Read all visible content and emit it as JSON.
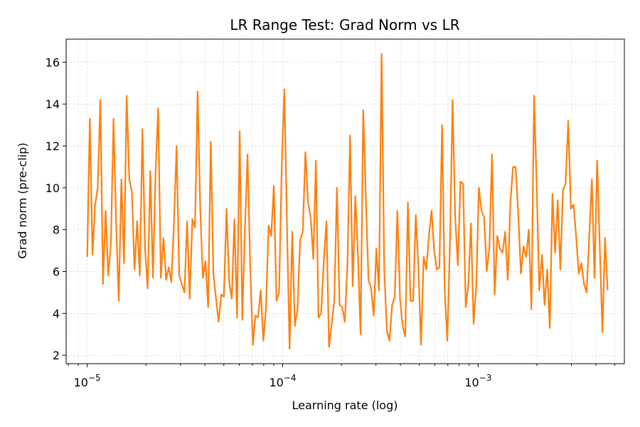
{
  "chart_data": {
    "type": "line",
    "title": "LR Range Test: Grad Norm vs LR",
    "xlabel": "Learning rate (log)",
    "ylabel": "Grad norm (pre-clip)",
    "x_scale": "log",
    "xlim": [
      7.8e-06,
      0.0056
    ],
    "ylim": [
      1.6,
      17.1
    ],
    "grid": true,
    "line_color": "#ff7f0e",
    "y_ticks": [
      2,
      4,
      6,
      8,
      10,
      12,
      14,
      16
    ],
    "x_major_ticks": [
      {
        "value": 1e-05,
        "mantissa": "10",
        "exponent": "−5"
      },
      {
        "value": 0.0001,
        "mantissa": "10",
        "exponent": "−4"
      },
      {
        "value": 0.001,
        "mantissa": "10",
        "exponent": "−3"
      }
    ],
    "series": [
      {
        "x_range": [
          1e-05,
          0.0046
        ],
        "y": [
          6.7,
          13.3,
          6.8,
          9.2,
          10.0,
          14.2,
          5.4,
          8.9,
          5.8,
          7.3,
          13.3,
          8.3,
          4.6,
          10.4,
          6.4,
          14.4,
          10.4,
          9.8,
          6.1,
          8.4,
          5.8,
          12.8,
          7.1,
          5.2,
          10.8,
          5.7,
          10.7,
          13.8,
          5.7,
          7.6,
          5.6,
          6.2,
          5.5,
          8.3,
          12.0,
          5.8,
          5.4,
          5.0,
          8.4,
          4.7,
          8.5,
          8.1,
          14.6,
          9.0,
          5.7,
          6.5,
          4.3,
          12.2,
          5.9,
          4.7,
          3.6,
          4.9,
          4.8,
          9.0,
          5.5,
          4.7,
          8.5,
          3.8,
          12.7,
          3.7,
          8.0,
          11.6,
          6.3,
          2.5,
          3.9,
          3.8,
          5.1,
          2.7,
          4.2,
          8.2,
          7.7,
          10.1,
          4.6,
          5.0,
          11.0,
          14.7,
          8.2,
          2.3,
          7.9,
          3.4,
          4.2,
          7.5,
          7.9,
          11.7,
          9.3,
          8.6,
          6.6,
          11.3,
          3.8,
          4.0,
          6.5,
          8.4,
          2.4,
          3.5,
          4.6,
          10.0,
          4.4,
          4.3,
          3.6,
          6.3,
          12.5,
          5.3,
          9.6,
          6.8,
          3.0,
          13.7,
          9.6,
          5.6,
          5.2,
          3.9,
          7.1,
          5.1,
          16.4,
          6.1,
          3.2,
          2.7,
          4.4,
          4.8,
          8.9,
          4.7,
          3.4,
          2.9,
          9.3,
          4.6,
          4.6,
          8.7,
          6.2,
          2.5,
          6.7,
          6.1,
          7.7,
          8.9,
          7.0,
          6.1,
          6.2,
          13.0,
          5.1,
          2.7,
          7.3,
          14.2,
          8.6,
          6.3,
          10.3,
          10.2,
          4.3,
          5.4,
          8.3,
          3.5,
          5.3,
          10.0,
          8.9,
          8.6,
          6.0,
          7.1,
          11.6,
          4.9,
          7.7,
          7.1,
          6.9,
          7.9,
          5.6,
          9.3,
          11.0,
          11.0,
          8.7,
          5.9,
          7.2,
          6.7,
          8.0,
          4.2,
          14.4,
          10.1,
          5.1,
          6.8,
          4.4,
          6.1,
          3.3,
          9.7,
          6.9,
          9.4,
          6.1,
          9.9,
          10.2,
          13.2,
          9.0,
          9.2,
          7.7,
          5.9,
          6.4,
          5.4,
          5.0,
          7.7,
          10.4,
          5.7,
          11.3,
          7.2,
          3.1,
          7.6,
          5.1
        ]
      }
    ]
  }
}
